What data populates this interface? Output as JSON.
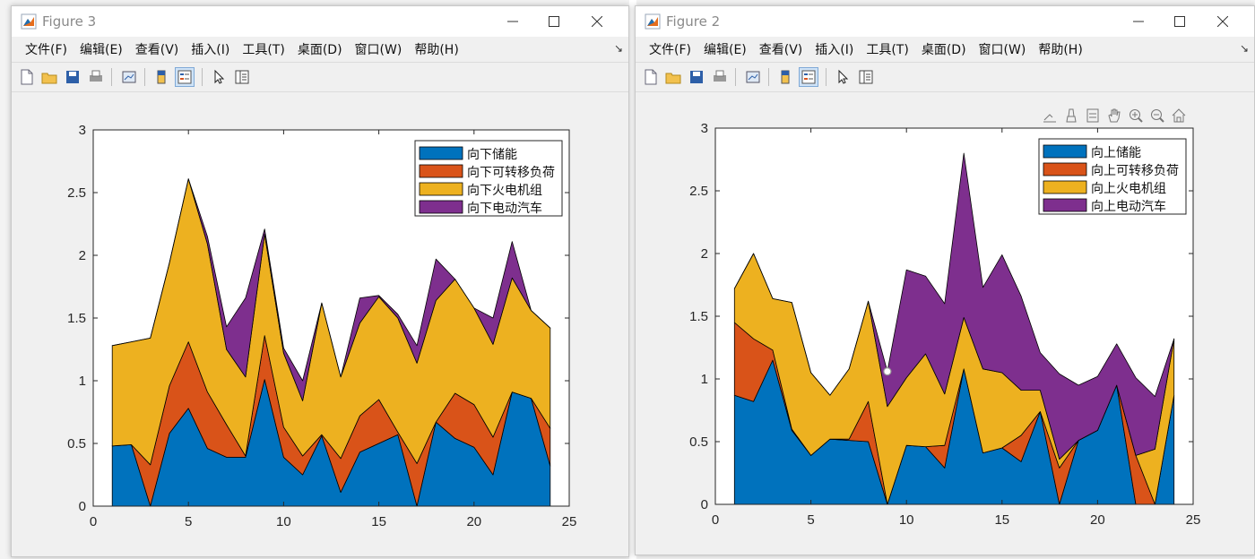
{
  "windows": [
    {
      "id": "fig3",
      "title": "Figure 3",
      "menu": [
        "文件(F)",
        "编辑(E)",
        "查看(V)",
        "插入(I)",
        "工具(T)",
        "桌面(D)",
        "窗口(W)",
        "帮助(H)"
      ],
      "chart_data": {
        "type": "area",
        "stacked": true,
        "x": [
          1,
          2,
          3,
          4,
          5,
          6,
          7,
          8,
          9,
          10,
          11,
          12,
          13,
          14,
          15,
          16,
          17,
          18,
          19,
          20,
          21,
          22,
          23,
          24
        ],
        "series": [
          {
            "name": "向下储能",
            "color": "#0072bd",
            "values": [
              0.48,
              0.49,
              0.0,
              0.58,
              0.78,
              0.46,
              0.39,
              0.39,
              1.01,
              0.39,
              0.25,
              0.56,
              0.11,
              0.43,
              0.5,
              0.57,
              0.0,
              0.67,
              0.54,
              0.47,
              0.25,
              0.91,
              0.86,
              0.32
            ]
          },
          {
            "name": "向下可转移负荷",
            "color": "#d95319",
            "values": [
              0.0,
              0.0,
              0.33,
              0.38,
              0.53,
              0.45,
              0.26,
              0.01,
              0.35,
              0.24,
              0.15,
              0.01,
              0.27,
              0.29,
              0.35,
              0.02,
              0.34,
              0.0,
              0.36,
              0.34,
              0.3,
              0.0,
              0.0,
              0.3
            ]
          },
          {
            "name": "向下火电机组",
            "color": "#edb120",
            "values": [
              0.8,
              0.82,
              1.01,
              0.98,
              1.3,
              1.18,
              0.6,
              0.63,
              0.81,
              0.59,
              0.44,
              1.05,
              0.65,
              0.74,
              0.82,
              0.91,
              0.8,
              0.97,
              0.91,
              0.77,
              0.74,
              0.91,
              0.7,
              0.8
            ]
          },
          {
            "name": "向下电动汽车",
            "color": "#7e2f8e",
            "values": [
              0.0,
              0.0,
              0.0,
              0.0,
              0.0,
              0.06,
              0.18,
              0.63,
              0.04,
              0.04,
              0.16,
              0.0,
              0.0,
              0.2,
              0.01,
              0.03,
              0.14,
              0.33,
              0.0,
              0.0,
              0.21,
              0.29,
              0.0,
              0.0
            ]
          }
        ],
        "xlim": [
          0,
          25
        ],
        "ylim": [
          0,
          3
        ],
        "xticks": [
          0,
          5,
          10,
          15,
          20,
          25
        ],
        "yticks": [
          0,
          0.5,
          1,
          1.5,
          2,
          2.5,
          3
        ],
        "ytick_labels": [
          "0",
          "0.5",
          "1",
          "1.5",
          "2",
          "2.5",
          "3"
        ],
        "legend": "top-right",
        "axes_toolbar": false
      }
    },
    {
      "id": "fig2",
      "title": "Figure 2",
      "menu": [
        "文件(F)",
        "编辑(E)",
        "查看(V)",
        "插入(I)",
        "工具(T)",
        "桌面(D)",
        "窗口(W)",
        "帮助(H)"
      ],
      "chart_data": {
        "type": "area",
        "stacked": true,
        "x": [
          1,
          2,
          3,
          4,
          5,
          6,
          7,
          8,
          9,
          10,
          11,
          12,
          13,
          14,
          15,
          16,
          17,
          18,
          19,
          20,
          21,
          22,
          23,
          24
        ],
        "series": [
          {
            "name": "向上储能",
            "color": "#0072bd",
            "values": [
              0.87,
              0.82,
              1.15,
              0.59,
              0.39,
              0.52,
              0.51,
              0.5,
              0.0,
              0.47,
              0.46,
              0.29,
              1.08,
              0.41,
              0.45,
              0.34,
              0.74,
              0.0,
              0.51,
              0.59,
              0.95,
              0.0,
              0.0,
              0.87
            ]
          },
          {
            "name": "向上可转移负荷",
            "color": "#d95319",
            "values": [
              0.58,
              0.5,
              0.08,
              0.01,
              0.0,
              0.0,
              0.01,
              0.32,
              0.0,
              0.0,
              0.0,
              0.18,
              0.0,
              0.0,
              0.0,
              0.21,
              0.0,
              0.29,
              0.0,
              0.0,
              0.0,
              0.39,
              0.0,
              0.0
            ]
          },
          {
            "name": "向上火电机组",
            "color": "#edb120",
            "values": [
              0.27,
              0.68,
              0.41,
              1.01,
              0.66,
              0.35,
              0.56,
              0.8,
              0.78,
              0.54,
              0.74,
              0.41,
              0.41,
              0.67,
              0.6,
              0.36,
              0.17,
              0.07,
              0.0,
              0.0,
              0.0,
              0.0,
              0.44,
              0.45
            ]
          },
          {
            "name": "向上电动汽车",
            "color": "#7e2f8e",
            "values": [
              0.0,
              0.0,
              0.0,
              0.0,
              0.0,
              0.0,
              0.0,
              0.0,
              0.28,
              0.86,
              0.62,
              0.72,
              1.31,
              0.65,
              0.94,
              0.75,
              0.3,
              0.68,
              0.44,
              0.43,
              0.33,
              0.62,
              0.42,
              0.0
            ]
          }
        ],
        "xlim": [
          0,
          25
        ],
        "ylim": [
          0,
          3
        ],
        "xticks": [
          0,
          5,
          10,
          15,
          20,
          25
        ],
        "yticks": [
          0,
          0.5,
          1,
          1.5,
          2,
          2.5,
          3
        ],
        "ytick_labels": [
          "0",
          "0.5",
          "1",
          "1.5",
          "2",
          "2.5",
          "3"
        ],
        "legend": "top-right",
        "axes_toolbar": true
      }
    }
  ]
}
